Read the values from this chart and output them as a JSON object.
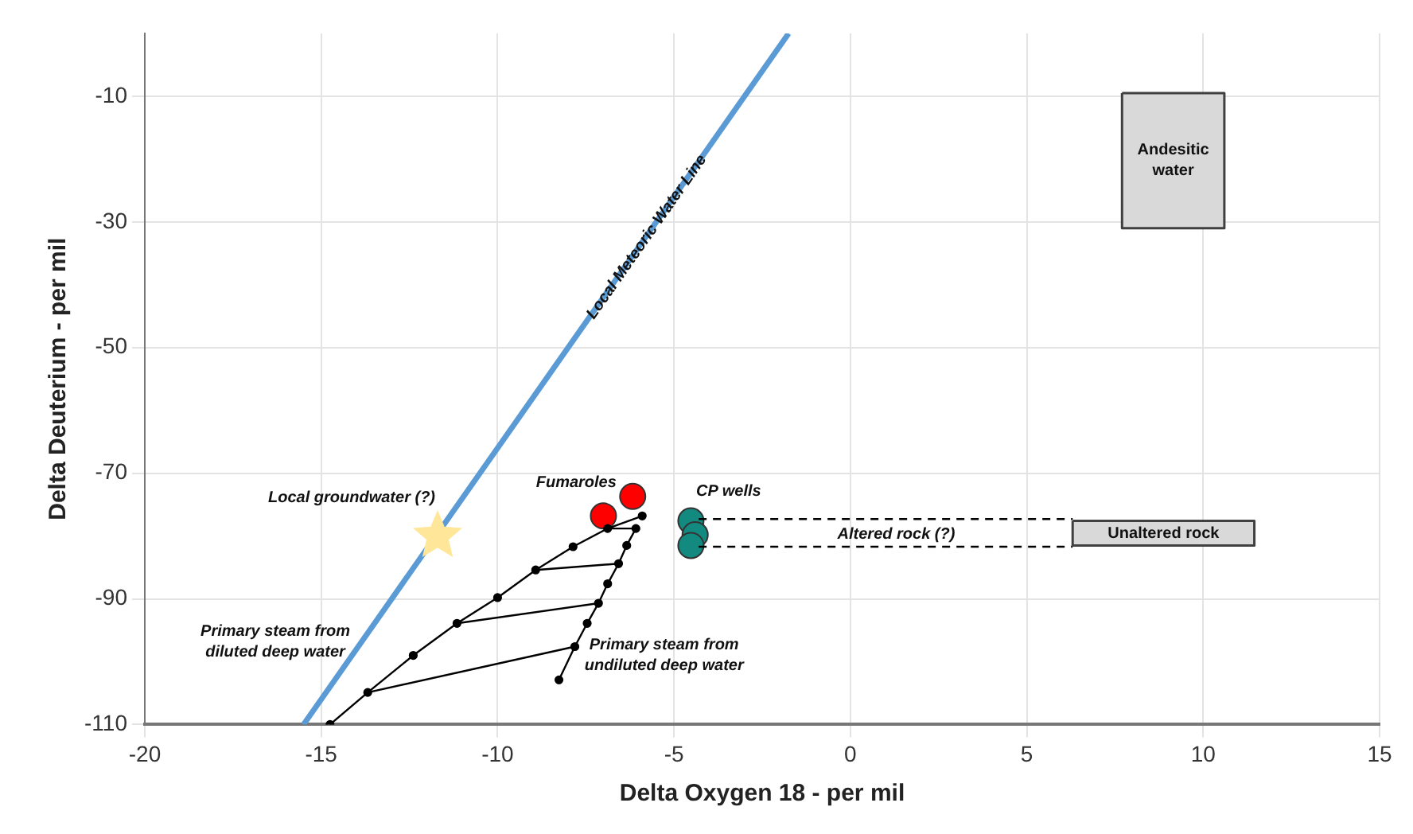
{
  "chart_data": {
    "type": "scatter",
    "xlabel": "Delta Oxygen 18 - per mil",
    "ylabel": "Delta Deuterium - per mil",
    "xlim": [
      -20,
      15
    ],
    "xticks": [
      -20,
      -15,
      -10,
      -5,
      0,
      5,
      10,
      15
    ],
    "ylim": [
      -110,
      0
    ],
    "yticks": [
      -110,
      -90,
      -70,
      -50,
      -30,
      -10
    ],
    "grid": true,
    "legend": false,
    "series": [
      {
        "type": "line",
        "color": "#5b9bd5",
        "x": [
          -15.5,
          -1.75
        ],
        "values": [
          -110,
          0
        ],
        "marker": "none",
        "line_style": "solid"
      },
      {
        "type": "area",
        "color": "#d9d9d9",
        "x": [
          7.7,
          10.6,
          10.6,
          7.7,
          7.7
        ],
        "values": [
          -9.5,
          -9.5,
          -31,
          -31,
          -9.5
        ],
        "marker": "none",
        "line_style": "solid"
      },
      {
        "type": "area",
        "color": "#d9d9d9",
        "x": [
          6.3,
          11.45,
          11.45,
          6.3,
          6.3
        ],
        "values": [
          -77.6,
          -77.6,
          -81.5,
          -81.5,
          -77.6
        ],
        "marker": "none",
        "line_style": "solid"
      },
      {
        "type": "line",
        "color": "#000000",
        "x": [
          -4.3,
          6.3
        ],
        "values": [
          -77.3,
          -77.3
        ],
        "marker": "none",
        "line_style": "dashed"
      },
      {
        "type": "line",
        "color": "#000000",
        "x": [
          -4.3,
          6.3
        ],
        "values": [
          -81.7,
          -81.7
        ],
        "marker": "none",
        "line_style": "dashed"
      },
      {
        "type": "line",
        "color": "#000000",
        "x": [
          -14.75,
          -13.68,
          -12.39,
          -11.15,
          -10.0,
          -8.92,
          -7.86,
          -6.88,
          -5.9
        ],
        "values": [
          -110,
          -104.9,
          -99.0,
          -93.9,
          -89.8,
          -85.4,
          -81.7,
          -78.8,
          -76.8
        ],
        "marker": "circle",
        "line_style": "solid"
      },
      {
        "type": "line",
        "color": "#000000",
        "x": [
          -8.26,
          -7.81,
          -7.46,
          -7.14,
          -6.88,
          -6.57,
          -6.34,
          -6.08
        ],
        "values": [
          -102.9,
          -97.6,
          -93.9,
          -90.7,
          -87.6,
          -84.4,
          -81.5,
          -78.8
        ],
        "marker": "circle",
        "line_style": "solid"
      },
      {
        "type": "line",
        "color": "#000000",
        "x": [
          -13.68,
          -7.81
        ],
        "values": [
          -104.9,
          -97.6
        ],
        "marker": "none",
        "line_style": "solid"
      },
      {
        "type": "line",
        "color": "#000000",
        "x": [
          -11.15,
          -7.14
        ],
        "values": [
          -93.9,
          -90.7
        ],
        "marker": "none",
        "line_style": "solid"
      },
      {
        "type": "line",
        "color": "#000000",
        "x": [
          -8.92,
          -6.57
        ],
        "values": [
          -85.4,
          -84.4
        ],
        "marker": "none",
        "line_style": "solid"
      },
      {
        "type": "line",
        "color": "#000000",
        "x": [
          -6.88,
          -6.08
        ],
        "values": [
          -78.8,
          -78.8
        ],
        "marker": "none",
        "line_style": "solid"
      },
      {
        "type": "scatter",
        "color": "#ffe699",
        "x": [
          -11.7
        ],
        "values": [
          -80
        ],
        "marker": "star"
      },
      {
        "type": "scatter",
        "color": "#ff0000",
        "x": [
          -7.0,
          -6.17
        ],
        "values": [
          -76.8,
          -73.7
        ],
        "marker": "circle"
      },
      {
        "type": "scatter",
        "color": "#138a80",
        "x": [
          -4.52,
          -4.4,
          -4.52
        ],
        "values": [
          -77.6,
          -79.8,
          -81.5
        ],
        "marker": "circle"
      }
    ],
    "annotations": [
      {
        "text": "Local Meteoric Water Line",
        "x": -5.77,
        "y": -32.4
      },
      {
        "text": "Local groundwater (?)",
        "x": -11.7,
        "y": -80
      },
      "Fumaroles",
      "CP wells",
      "Altered rock (?)",
      "Primary steam from diluted deep water",
      "Primary steam from undiluted deep water",
      "Andesitic water",
      "Unaltered rock"
    ]
  }
}
